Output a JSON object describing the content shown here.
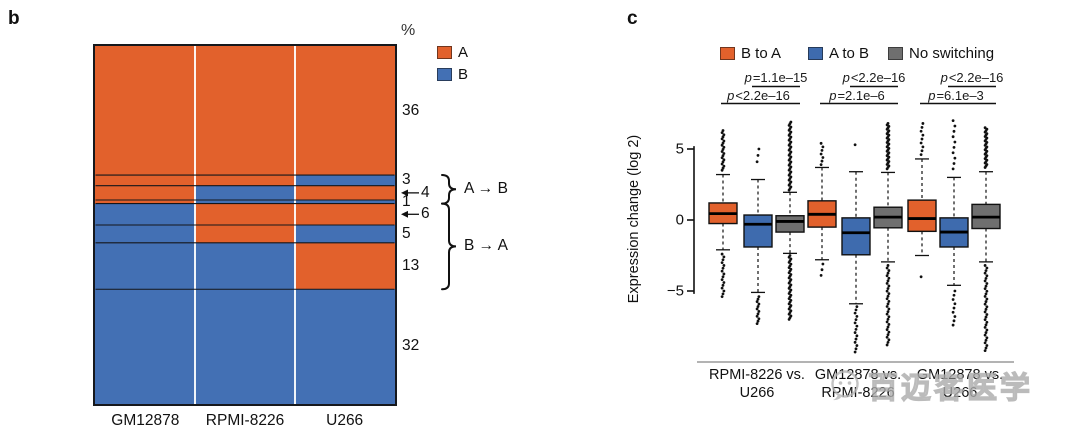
{
  "panels": {
    "b_label": "b",
    "c_label": "c"
  },
  "watermark": {
    "text": "百迈客医学",
    "icon": "speech-bubble-smiley"
  },
  "chart_data": [
    {
      "type": "mosaic",
      "panel": "b",
      "unit": "%",
      "columns": [
        "GM12878",
        "RPMI-8226",
        "U266"
      ],
      "legend": [
        {
          "label": "A",
          "color": "#e2612c"
        },
        {
          "label": "B",
          "color": "#4370b4"
        }
      ],
      "rows": [
        {
          "pct": 36,
          "pattern": [
            "A",
            "A",
            "A"
          ]
        },
        {
          "pct": 3,
          "pattern": [
            "A",
            "A",
            "B"
          ]
        },
        {
          "pct": 4,
          "pattern": [
            "A",
            "B",
            "A"
          ],
          "arrow": true
        },
        {
          "pct": 1,
          "pattern": [
            "A",
            "B",
            "B"
          ]
        },
        {
          "pct": 6,
          "pattern": [
            "B",
            "A",
            "A"
          ],
          "arrow": true
        },
        {
          "pct": 5,
          "pattern": [
            "B",
            "A",
            "B"
          ]
        },
        {
          "pct": 13,
          "pattern": [
            "B",
            "B",
            "A"
          ]
        },
        {
          "pct": 32,
          "pattern": [
            "B",
            "B",
            "B"
          ]
        }
      ],
      "brackets": [
        {
          "label": "A → B",
          "from_row": 1,
          "to_row": 3
        },
        {
          "label": "B → A",
          "from_row": 4,
          "to_row": 6
        }
      ]
    },
    {
      "type": "boxplot",
      "panel": "c",
      "ylabel": "Expression change (log 2)",
      "yticks": [
        5,
        0,
        -5
      ],
      "ylim": [
        -9.5,
        7
      ],
      "grid": false,
      "legend_position": "top",
      "legend": [
        {
          "label": "B to A",
          "color": "#e2612c"
        },
        {
          "label": "A to B",
          "color": "#3e6bae"
        },
        {
          "label": "No switching",
          "color": "#6f6f6f"
        }
      ],
      "groups": [
        {
          "label_line1": "RPMI-8226 vs.",
          "label_line2": "U266",
          "p_top": "p=1.1e–15",
          "p_bottom": "p<2.2e–16",
          "boxes": [
            {
              "series": "B to A",
              "median": 0.45,
              "q1": -0.25,
              "q3": 1.2,
              "whisker_low": -2.1,
              "whisker_high": 3.2,
              "outliers_above": {
                "min": 3.5,
                "max": 6.3,
                "count": 20
              },
              "outliers_below": {
                "min": -5.4,
                "max": -2.4,
                "count": 16
              }
            },
            {
              "series": "A to B",
              "median": -0.3,
              "q1": -1.9,
              "q3": 0.35,
              "whisker_low": -5.1,
              "whisker_high": 2.85,
              "outliers_above": {
                "min": 4.1,
                "max": 5.0,
                "count": 3
              },
              "outliers_below": {
                "min": -7.3,
                "max": -5.4,
                "count": 12
              }
            },
            {
              "series": "No switching",
              "median": -0.1,
              "q1": -0.85,
              "q3": 0.3,
              "whisker_low": -2.35,
              "whisker_high": 1.95,
              "outliers_above": {
                "min": 2.1,
                "max": 6.9,
                "count": 42
              },
              "outliers_below": {
                "min": -7.0,
                "max": -2.5,
                "count": 38
              }
            }
          ]
        },
        {
          "label_line1": "GM12878 vs.",
          "label_line2": "RPMI-8226",
          "p_top": "p<2.2e–16",
          "p_bottom": "p=2.1e–6",
          "boxes": [
            {
              "series": "B to A",
              "median": 0.4,
              "q1": -0.5,
              "q3": 1.35,
              "whisker_low": -2.8,
              "whisker_high": 3.7,
              "outliers_above": {
                "min": 3.9,
                "max": 5.4,
                "count": 7
              },
              "outliers_below": {
                "min": -3.9,
                "max": -3.1,
                "count": 3
              }
            },
            {
              "series": "A to B",
              "median": -0.9,
              "q1": -2.45,
              "q3": 0.15,
              "whisker_low": -5.9,
              "whisker_high": 3.4,
              "outliers_above": {
                "min": 5.3,
                "max": 5.3,
                "count": 1
              },
              "outliers_below": {
                "min": -9.3,
                "max": -6.1,
                "count": 15
              }
            },
            {
              "series": "No switching",
              "median": 0.2,
              "q1": -0.55,
              "q3": 0.9,
              "whisker_low": -2.95,
              "whisker_high": 3.35,
              "outliers_above": {
                "min": 3.6,
                "max": 6.8,
                "count": 32
              },
              "outliers_below": {
                "min": -8.8,
                "max": -3.2,
                "count": 32
              }
            }
          ]
        },
        {
          "label_line1": "GM12878 vs.",
          "label_line2": "U266",
          "p_top": "p<2.2e–16",
          "p_bottom": "p=6.1e–3",
          "boxes": [
            {
              "series": "B to A",
              "median": 0.1,
              "q1": -0.8,
              "q3": 1.4,
              "whisker_low": -2.5,
              "whisker_high": 4.3,
              "outliers_above": {
                "min": 4.6,
                "max": 6.8,
                "count": 9
              },
              "outliers_below": {
                "min": -4.0,
                "max": -4.0,
                "count": 1
              }
            },
            {
              "series": "A to B",
              "median": -0.85,
              "q1": -1.9,
              "q3": 0.15,
              "whisker_low": -4.6,
              "whisker_high": 3.0,
              "outliers_above": {
                "min": 3.6,
                "max": 7.0,
                "count": 10
              },
              "outliers_below": {
                "min": -7.4,
                "max": -5.0,
                "count": 9
              }
            },
            {
              "series": "No switching",
              "median": 0.2,
              "q1": -0.6,
              "q3": 1.1,
              "whisker_low": -2.95,
              "whisker_high": 3.4,
              "outliers_above": {
                "min": 3.7,
                "max": 6.5,
                "count": 28
              },
              "outliers_below": {
                "min": -9.2,
                "max": -3.2,
                "count": 34
              }
            }
          ]
        }
      ]
    }
  ]
}
